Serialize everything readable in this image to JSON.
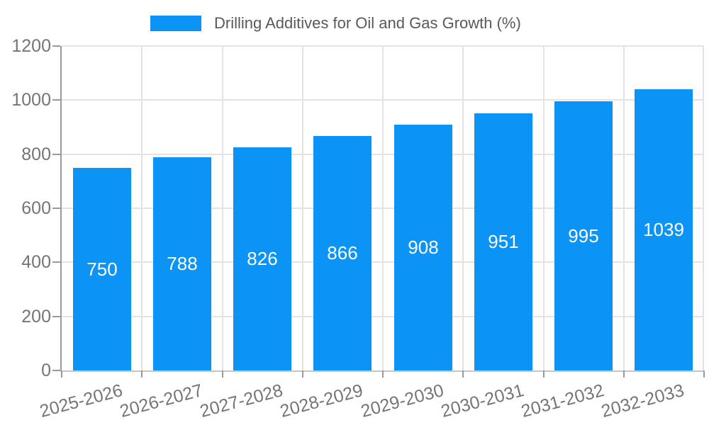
{
  "chart_data": {
    "type": "bar",
    "title": "Drilling Additives for Oil and Gas Growth (%)",
    "categories": [
      "2025-2026",
      "2026-2027",
      "2027-2028",
      "2028-2029",
      "2029-2030",
      "2030-2031",
      "2031-2032",
      "2032-2033"
    ],
    "values": [
      750,
      788,
      826,
      866,
      908,
      951,
      995,
      1039
    ],
    "xlabel": "",
    "ylabel": "",
    "ylim": [
      0,
      1200
    ],
    "yticks": [
      0,
      200,
      400,
      600,
      800,
      1000,
      1200
    ],
    "grid": true,
    "legend_position": "top-center",
    "bar_labels_inside": true,
    "colors": {
      "bar": "#0b93f6",
      "bar_label": "#ffffff",
      "axis_text": "#757575",
      "title_text": "#595959",
      "gridline": "#e3e3e3",
      "axis_line": "#9a9a9a"
    }
  }
}
